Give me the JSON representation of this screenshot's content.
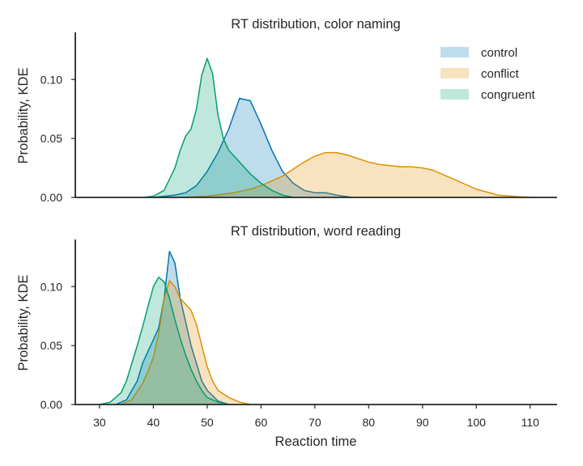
{
  "chart_data": [
    {
      "type": "area",
      "title": "RT distribution, color naming",
      "ylabel": "Probability, KDE",
      "xlabel": "",
      "xlim": [
        25.5,
        115
      ],
      "ylim": [
        0,
        0.14
      ],
      "yticks": [
        0.0,
        0.05,
        0.1
      ],
      "ytick_labels": [
        "0.00",
        "0.05",
        "0.10"
      ],
      "xticks_visible": false,
      "grid": false,
      "legend": {
        "placement": "top-right",
        "entries": [
          "control",
          "conflict",
          "congruent"
        ]
      },
      "series": [
        {
          "name": "control",
          "color": "#0173b2",
          "x": [
            40,
            44,
            46,
            48,
            50,
            52,
            54,
            56,
            58,
            60,
            62,
            64,
            66,
            68,
            70,
            72,
            74,
            77
          ],
          "y": [
            0.0,
            0.002,
            0.004,
            0.01,
            0.022,
            0.038,
            0.058,
            0.084,
            0.082,
            0.062,
            0.04,
            0.022,
            0.012,
            0.006,
            0.004,
            0.004,
            0.002,
            0.0
          ]
        },
        {
          "name": "conflict",
          "color": "#de8f05",
          "x": [
            45,
            50,
            55,
            58,
            60,
            62,
            64,
            66,
            68,
            70,
            72,
            74,
            76,
            78,
            80,
            82,
            84,
            86,
            88,
            90,
            92,
            94,
            96,
            98,
            100,
            104,
            108,
            111
          ],
          "y": [
            0.0,
            0.001,
            0.004,
            0.007,
            0.01,
            0.014,
            0.018,
            0.024,
            0.03,
            0.035,
            0.038,
            0.038,
            0.036,
            0.033,
            0.03,
            0.028,
            0.027,
            0.026,
            0.026,
            0.025,
            0.023,
            0.019,
            0.015,
            0.011,
            0.007,
            0.002,
            0.0005,
            0.0
          ]
        },
        {
          "name": "congruent",
          "color": "#029e73",
          "x": [
            38,
            40,
            42,
            44,
            45,
            46,
            47,
            48,
            49,
            50,
            51,
            52,
            53,
            54,
            56,
            58,
            60,
            62,
            64,
            66
          ],
          "y": [
            0.0,
            0.001,
            0.006,
            0.025,
            0.04,
            0.052,
            0.058,
            0.075,
            0.104,
            0.118,
            0.105,
            0.07,
            0.05,
            0.04,
            0.03,
            0.02,
            0.012,
            0.006,
            0.002,
            0.0
          ]
        }
      ]
    },
    {
      "type": "area",
      "title": "RT distribution, word reading",
      "ylabel": "Probability, KDE",
      "xlabel": "Reaction time",
      "xlim": [
        25.5,
        115
      ],
      "ylim": [
        0,
        0.14
      ],
      "yticks": [
        0.0,
        0.05,
        0.1
      ],
      "ytick_labels": [
        "0.00",
        "0.05",
        "0.10"
      ],
      "xticks": [
        30,
        40,
        50,
        60,
        70,
        80,
        90,
        100,
        110
      ],
      "xtick_labels": [
        "30",
        "40",
        "50",
        "60",
        "70",
        "80",
        "90",
        "100",
        "110"
      ],
      "grid": false,
      "series": [
        {
          "name": "control",
          "color": "#0173b2",
          "x": [
            33,
            35,
            37,
            38,
            39,
            40,
            41,
            42,
            43,
            44,
            45,
            46,
            47,
            48,
            49,
            50,
            52,
            54
          ],
          "y": [
            0.0,
            0.004,
            0.02,
            0.035,
            0.045,
            0.055,
            0.065,
            0.09,
            0.13,
            0.12,
            0.09,
            0.07,
            0.05,
            0.035,
            0.02,
            0.012,
            0.003,
            0.0
          ]
        },
        {
          "name": "conflict",
          "color": "#de8f05",
          "x": [
            34,
            36,
            38,
            39,
            40,
            41,
            42,
            43,
            44,
            45,
            46,
            47,
            48,
            49,
            50,
            51,
            52,
            54,
            56,
            58
          ],
          "y": [
            0.0,
            0.004,
            0.018,
            0.028,
            0.04,
            0.06,
            0.09,
            0.105,
            0.1,
            0.09,
            0.085,
            0.08,
            0.068,
            0.05,
            0.032,
            0.02,
            0.012,
            0.006,
            0.002,
            0.0
          ]
        },
        {
          "name": "congruent",
          "color": "#029e73",
          "x": [
            30,
            32,
            34,
            35,
            36,
            37,
            38,
            39,
            40,
            41,
            42,
            43,
            44,
            45,
            46,
            47,
            48,
            49,
            50,
            52,
            54
          ],
          "y": [
            0.0,
            0.002,
            0.01,
            0.02,
            0.035,
            0.05,
            0.066,
            0.083,
            0.1,
            0.108,
            0.104,
            0.09,
            0.072,
            0.056,
            0.042,
            0.03,
            0.02,
            0.012,
            0.006,
            0.002,
            0.0
          ]
        }
      ]
    }
  ]
}
